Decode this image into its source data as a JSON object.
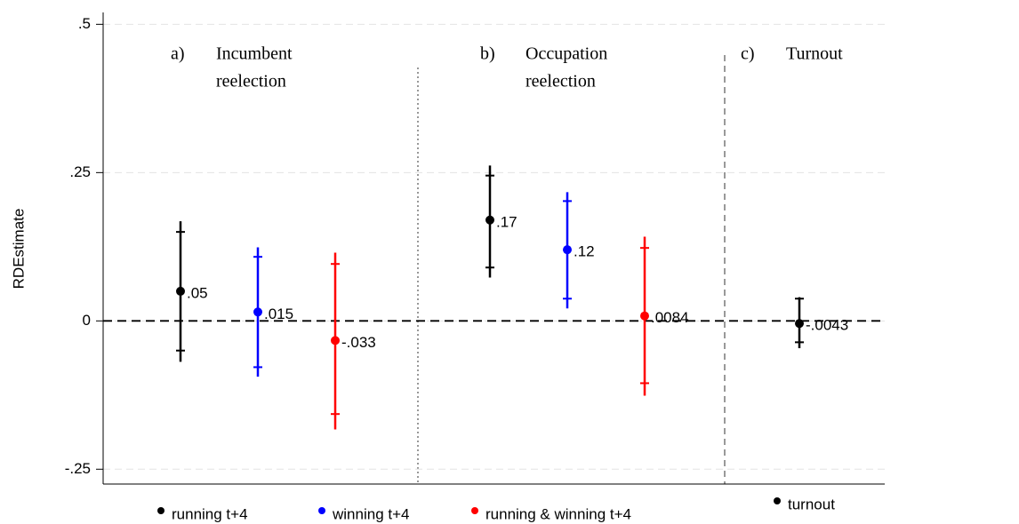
{
  "chart_data": {
    "type": "errorbar",
    "y_label": "RDEstimate",
    "categories": [
      null,
      null,
      null,
      null,
      null,
      null,
      null,
      null,
      null
    ],
    "ylim": [
      -0.275,
      0.52
    ],
    "yticks": [
      {
        "value": -0.25,
        "label": "-.25"
      },
      0,
      {
        "value": 0.25,
        "label": ".25"
      },
      {
        "value": 0.5,
        "label": ".5"
      }
    ],
    "grid": true,
    "panels": [
      {
        "letter": "a)",
        "text": [
          "Incumbent",
          "reelection"
        ]
      },
      {
        "letter": "b)",
        "text": [
          "Occupation",
          "reelection"
        ]
      },
      {
        "letter": "c)",
        "text": [
          "Turnout"
        ]
      }
    ],
    "series": [
      {
        "name": "running t+4",
        "color": "#000000",
        "values": [
          0.05,
          null,
          null,
          null,
          0.17,
          null,
          null,
          null,
          null
        ],
        "value_labels": [
          ".05",
          null,
          null,
          null,
          ".17",
          null,
          null,
          null,
          null
        ],
        "ci_low_inner": [
          -0.05,
          null,
          null,
          null,
          0.09,
          null,
          null,
          null,
          null
        ],
        "ci_high_inner": [
          0.15,
          null,
          null,
          null,
          0.245,
          null,
          null,
          null,
          null
        ],
        "ci_low": [
          -0.069,
          null,
          null,
          null,
          0.073,
          null,
          null,
          null,
          null
        ],
        "ci_high": [
          0.168,
          null,
          null,
          null,
          0.262,
          null,
          null,
          null,
          null
        ]
      },
      {
        "name": "winning t+4",
        "color": "#0000ff",
        "values": [
          null,
          0.015,
          null,
          null,
          null,
          0.12,
          null,
          null,
          null
        ],
        "value_labels": [
          null,
          ".015",
          null,
          null,
          null,
          ".12",
          null,
          null,
          null
        ],
        "ci_low_inner": [
          null,
          -0.078,
          null,
          null,
          null,
          0.0375,
          null,
          null,
          null
        ],
        "ci_high_inner": [
          null,
          0.108,
          null,
          null,
          null,
          0.202,
          null,
          null,
          null
        ],
        "ci_low": [
          null,
          -0.094,
          null,
          null,
          null,
          0.021,
          null,
          null,
          null
        ],
        "ci_high": [
          null,
          0.124,
          null,
          null,
          null,
          0.217,
          null,
          null,
          null
        ]
      },
      {
        "name": "running & winning t+4",
        "color": "#ff0000",
        "values": [
          null,
          null,
          -0.033,
          null,
          null,
          null,
          0.0084,
          null,
          null
        ],
        "value_labels": [
          null,
          null,
          "-.033",
          null,
          null,
          null,
          ".0084",
          null,
          null
        ],
        "ci_low_inner": [
          null,
          null,
          -0.157,
          null,
          null,
          null,
          -0.105,
          null,
          null
        ],
        "ci_high_inner": [
          null,
          null,
          0.096,
          null,
          null,
          null,
          0.123,
          null,
          null
        ],
        "ci_low": [
          null,
          null,
          -0.183,
          null,
          null,
          null,
          -0.126,
          null,
          null
        ],
        "ci_high": [
          null,
          null,
          0.115,
          null,
          null,
          null,
          0.142,
          null,
          null
        ]
      },
      {
        "name": "turnout",
        "color": "#000000",
        "values": [
          null,
          null,
          null,
          null,
          null,
          null,
          null,
          null,
          -0.0043
        ],
        "value_labels": [
          null,
          null,
          null,
          null,
          null,
          null,
          null,
          null,
          "-.0043"
        ],
        "ci_low_inner": [
          null,
          null,
          null,
          null,
          null,
          null,
          null,
          null,
          -0.036
        ],
        "ci_high_inner": [
          null,
          null,
          null,
          null,
          null,
          null,
          null,
          null,
          0.0375
        ],
        "ci_low": [
          null,
          null,
          null,
          null,
          null,
          null,
          null,
          null,
          -0.046
        ],
        "ci_high": [
          null,
          null,
          null,
          null,
          null,
          null,
          null,
          null,
          0.04
        ]
      }
    ]
  }
}
